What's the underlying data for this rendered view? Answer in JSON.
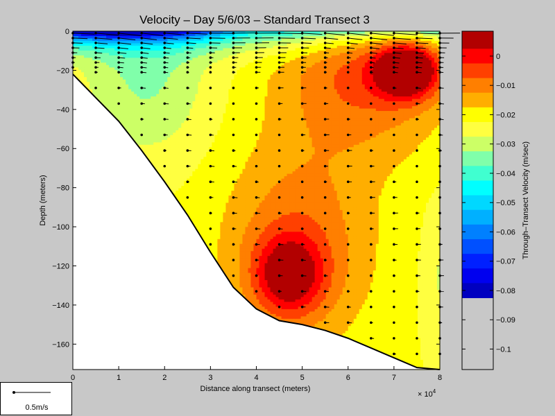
{
  "chart_data": {
    "type": "heatmap",
    "title": "Velocity – Day 5/6/03 – Standard Transect 3",
    "xlabel": "Distance along transect (meters)",
    "ylabel": "Depth (meters)",
    "x_multiplier": "× 10",
    "x_multiplier_exp": "4",
    "xlim": [
      0,
      8
    ],
    "ylim": [
      -173,
      0
    ],
    "x_ticks": [
      "0",
      "1",
      "2",
      "3",
      "4",
      "5",
      "6",
      "7",
      "8"
    ],
    "x_tick_values": [
      0,
      1,
      2,
      3,
      4,
      5,
      6,
      7,
      8
    ],
    "y_ticks": [
      "0",
      "−20",
      "−40",
      "−60",
      "−80",
      "−100",
      "−120",
      "−140",
      "−160"
    ],
    "y_tick_values": [
      0,
      -20,
      -40,
      -60,
      -80,
      -100,
      -120,
      -140,
      -160
    ],
    "colorbar": {
      "label": "Through–Transect Velocity (m/sec)",
      "range": [
        -0.107,
        0.0085
      ],
      "ticks": [
        "0",
        "−0.01",
        "−0.02",
        "−0.03",
        "−0.04",
        "−0.05",
        "−0.06",
        "−0.07",
        "−0.08",
        "−0.09",
        "−0.1"
      ],
      "tick_values": [
        0,
        -0.01,
        -0.02,
        -0.03,
        -0.04,
        -0.05,
        -0.06,
        -0.07,
        -0.08,
        -0.09,
        -0.1
      ],
      "levels": [
        0.0085,
        0.0025,
        -0.0025,
        -0.0075,
        -0.0125,
        -0.0175,
        -0.0225,
        -0.0275,
        -0.0325,
        -0.0375,
        -0.0425,
        -0.0475,
        -0.0525,
        -0.0575,
        -0.0625,
        -0.0675,
        -0.0725,
        -0.0775,
        -0.0825,
        -0.0875,
        -0.0925,
        -0.0975,
        -0.1025,
        -0.107
      ],
      "colors": [
        "#b20000",
        "#ff0000",
        "#ff4000",
        "#ff7f00",
        "#ffae00",
        "#ffff00",
        "#ffff40",
        "#ccff66",
        "#80ffaa",
        "#40ffd0",
        "#00ffff",
        "#00d8ff",
        "#00b0ff",
        "#0080ff",
        "#0050ff",
        "#0020ff",
        "#0000ef",
        "#0000c0"
      ]
    },
    "bottom_profile": {
      "x": [
        0,
        0.5,
        1,
        1.5,
        2,
        2.5,
        3,
        3.5,
        4,
        4.5,
        5,
        5.5,
        6,
        6.5,
        7,
        7.5,
        8
      ],
      "depth": [
        -22,
        -34,
        -46,
        -61,
        -77,
        -94,
        -113,
        -131,
        -142,
        -148,
        -150,
        -153,
        -157,
        -162,
        -167,
        -172,
        -173
      ]
    },
    "velocity_blobs": [
      {
        "x": 7.3,
        "depth": -20,
        "sx": 0.7,
        "sy": 14,
        "amp": 0.033
      },
      {
        "x": 6.3,
        "depth": -20,
        "sx": 1.8,
        "sy": 42,
        "amp": 0.016
      },
      {
        "x": 4.7,
        "depth": -125,
        "sx": 0.75,
        "sy": 20,
        "amp": 0.022
      },
      {
        "x": 4.9,
        "depth": -110,
        "sx": 1.6,
        "sy": 50,
        "amp": 0.014
      },
      {
        "x": 1.6,
        "depth": -25,
        "sx": 1.4,
        "sy": 40,
        "amp": -0.011
      },
      {
        "x": 4.7,
        "depth": -5,
        "sx": 2.2,
        "sy": 10,
        "amp": -0.005
      },
      {
        "x": 8.0,
        "depth": -125,
        "sx": 0.4,
        "sy": 40,
        "amp": -0.006
      }
    ],
    "velocity_base": -0.022,
    "surface_jet": {
      "depth_scale": 5.5,
      "amp": -0.07,
      "x_center": 0.8,
      "x_scale": 3.0,
      "x_floor": 0.35
    },
    "arrow_stations_x": [
      0,
      0.5,
      1,
      1.5,
      2,
      2.5,
      3,
      3.5,
      4,
      4.5,
      5,
      5.5,
      6,
      6.5,
      7,
      7.5,
      8
    ],
    "scale_arrow_label": "0.5m/s"
  }
}
